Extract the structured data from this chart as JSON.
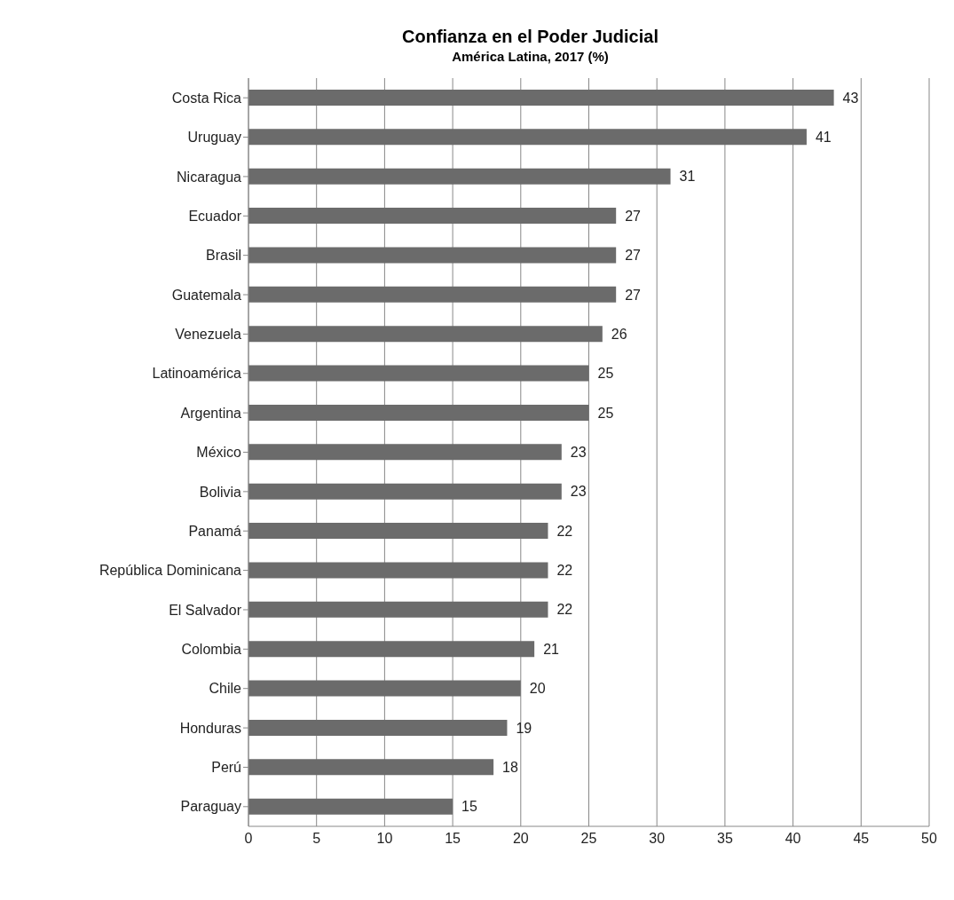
{
  "chart_data": {
    "type": "bar",
    "orientation": "horizontal",
    "title": "Confianza en el Poder Judicial",
    "subtitle": "América Latina, 2017 (%)",
    "categories": [
      "Costa Rica",
      "Uruguay",
      "Nicaragua",
      "Ecuador",
      "Brasil",
      "Guatemala",
      "Venezuela",
      "Latinoamérica",
      "Argentina",
      "México",
      "Bolivia",
      "Panamá",
      "República Dominicana",
      "El Salvador",
      "Colombia",
      "Chile",
      "Honduras",
      "Perú",
      "Paraguay"
    ],
    "values": [
      43,
      41,
      31,
      27,
      27,
      27,
      26,
      25,
      25,
      23,
      23,
      22,
      22,
      22,
      21,
      20,
      19,
      18,
      15
    ],
    "color": "#6b6b6b",
    "xlim": [
      0,
      50
    ],
    "xticks": [
      0,
      5,
      10,
      15,
      20,
      25,
      30,
      35,
      40,
      45,
      50
    ],
    "grid": "x",
    "data_labels": true
  }
}
